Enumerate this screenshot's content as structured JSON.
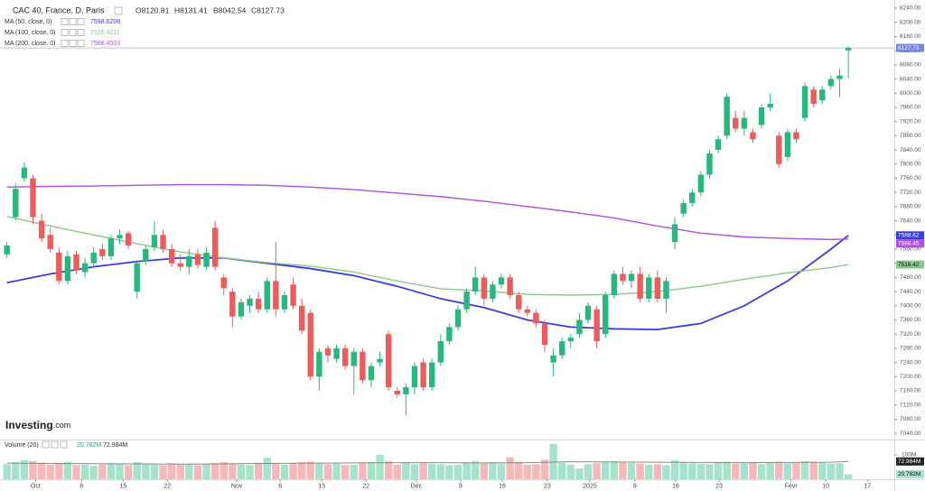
{
  "chart_data": {
    "type": "candlestick",
    "title": "CAC 40, France, D, Paris",
    "ohlc_header": [
      "O8120.81",
      "H8131.41",
      "B8042.54",
      "C8127.73"
    ],
    "last_label": "8127.73",
    "logo": "Investing",
    "logo_suffix": ".com",
    "grid": false,
    "up_color": "#26b87c",
    "down_color": "#ef5a5a",
    "xlim": [
      -0.8,
      102.3
    ],
    "xticks": [
      {
        "value": 3.3,
        "label": "Oct"
      },
      {
        "value": 8.6,
        "label": "8"
      },
      {
        "value": 13.4,
        "label": "15"
      },
      {
        "value": 18.5,
        "label": "22"
      },
      {
        "value": 26.5,
        "label": "Nov"
      },
      {
        "value": 31.5,
        "label": "6"
      },
      {
        "value": 36.3,
        "label": "15"
      },
      {
        "value": 41.4,
        "label": "22"
      },
      {
        "value": 47.2,
        "label": "Déc"
      },
      {
        "value": 52.3,
        "label": "9"
      },
      {
        "value": 57.1,
        "label": "16"
      },
      {
        "value": 62.3,
        "label": "23"
      },
      {
        "value": 67.2,
        "label": "2025"
      },
      {
        "value": 72.4,
        "label": "9"
      },
      {
        "value": 77.1,
        "label": "16"
      },
      {
        "value": 82.1,
        "label": "23"
      },
      {
        "value": 90.4,
        "label": "Févr"
      },
      {
        "value": 94.4,
        "label": "10"
      },
      {
        "value": 99.2,
        "label": "17"
      }
    ],
    "ylim": [
      7025,
      8263
    ],
    "yticks": [
      {
        "value": 7040,
        "label": "7040.00"
      },
      {
        "value": 7080,
        "label": "7080.00"
      },
      {
        "value": 7120,
        "label": "7120.00"
      },
      {
        "value": 7160,
        "label": "7160.00"
      },
      {
        "value": 7200,
        "label": "7200.00"
      },
      {
        "value": 7240,
        "label": "7240.00"
      },
      {
        "value": 7280,
        "label": "7280.00"
      },
      {
        "value": 7320,
        "label": "7320.00"
      },
      {
        "value": 7360,
        "label": "7360.00"
      },
      {
        "value": 7400,
        "label": "7400.00"
      },
      {
        "value": 7440,
        "label": "7440.00"
      },
      {
        "value": 7480,
        "label": "7480.00"
      },
      {
        "value": 7520,
        "label": "7520.00"
      },
      {
        "value": 7560,
        "label": "7560.00"
      },
      {
        "value": 7600,
        "label": "7600.00"
      },
      {
        "value": 7640,
        "label": "7640.00"
      },
      {
        "value": 7680,
        "label": "7680.00"
      },
      {
        "value": 7720,
        "label": "7720.00"
      },
      {
        "value": 7760,
        "label": "7760.00"
      },
      {
        "value": 7800,
        "label": "7800.00"
      },
      {
        "value": 7840,
        "label": "7840.00"
      },
      {
        "value": 7880,
        "label": "7880.00"
      },
      {
        "value": 7920,
        "label": "7920.00"
      },
      {
        "value": 7960,
        "label": "7960.00"
      },
      {
        "value": 8000,
        "label": "8000.00"
      },
      {
        "value": 8040,
        "label": "8040.00"
      },
      {
        "value": 8080,
        "label": "8080.00"
      },
      {
        "value": 8120,
        "label": "8120.00"
      },
      {
        "value": 8160,
        "label": "8160.00"
      },
      {
        "value": 8200,
        "label": "8200.00"
      },
      {
        "value": 8240,
        "label": "8240.00"
      }
    ],
    "ohlc": [
      [
        7545,
        7580,
        7535,
        7570
      ],
      [
        7650,
        7745,
        7640,
        7730
      ],
      [
        7760,
        7805,
        7750,
        7790
      ],
      [
        7760,
        7770,
        7630,
        7650
      ],
      [
        7640,
        7660,
        7580,
        7590
      ],
      [
        7600,
        7620,
        7550,
        7560
      ],
      [
        7550,
        7565,
        7460,
        7470
      ],
      [
        7470,
        7555,
        7460,
        7540
      ],
      [
        7545,
        7555,
        7490,
        7500
      ],
      [
        7495,
        7535,
        7480,
        7520
      ],
      [
        7520,
        7565,
        7510,
        7550
      ],
      [
        7560,
        7575,
        7530,
        7540
      ],
      [
        7540,
        7600,
        7530,
        7590
      ],
      [
        7590,
        7615,
        7575,
        7600
      ],
      [
        7605,
        7610,
        7560,
        7570
      ],
      [
        7440,
        7530,
        7420,
        7520
      ],
      [
        7525,
        7570,
        7515,
        7560
      ],
      [
        7565,
        7640,
        7555,
        7600
      ],
      [
        7600,
        7615,
        7550,
        7560
      ],
      [
        7560,
        7575,
        7510,
        7520
      ],
      [
        7520,
        7545,
        7500,
        7510
      ],
      [
        7510,
        7560,
        7490,
        7540
      ],
      [
        7545,
        7560,
        7505,
        7515
      ],
      [
        7510,
        7565,
        7500,
        7550
      ],
      [
        7620,
        7640,
        7500,
        7510
      ],
      [
        7480,
        7490,
        7430,
        7450
      ],
      [
        7440,
        7450,
        7340,
        7370
      ],
      [
        7370,
        7420,
        7360,
        7410
      ],
      [
        7400,
        7430,
        7380,
        7420
      ],
      [
        7420,
        7440,
        7380,
        7390
      ],
      [
        7390,
        7480,
        7380,
        7470
      ],
      [
        7470,
        7580,
        7370,
        7390
      ],
      [
        7390,
        7440,
        7380,
        7430
      ],
      [
        7460,
        7480,
        7390,
        7400
      ],
      [
        7400,
        7420,
        7320,
        7330
      ],
      [
        7380,
        7390,
        7190,
        7200
      ],
      [
        7200,
        7280,
        7160,
        7270
      ],
      [
        7280,
        7290,
        7240,
        7260
      ],
      [
        7250,
        7290,
        7240,
        7280
      ],
      [
        7280,
        7290,
        7220,
        7230
      ],
      [
        7230,
        7280,
        7150,
        7270
      ],
      [
        7270,
        7280,
        7180,
        7190
      ],
      [
        7190,
        7240,
        7170,
        7230
      ],
      [
        7240,
        7270,
        7230,
        7250
      ],
      [
        7320,
        7330,
        7160,
        7170
      ],
      [
        7160,
        7170,
        7140,
        7150
      ],
      [
        7150,
        7180,
        7090,
        7170
      ],
      [
        7170,
        7240,
        7150,
        7230
      ],
      [
        7240,
        7250,
        7160,
        7170
      ],
      [
        7170,
        7250,
        7160,
        7240
      ],
      [
        7240,
        7320,
        7230,
        7300
      ],
      [
        7300,
        7350,
        7290,
        7340
      ],
      [
        7340,
        7400,
        7330,
        7390
      ],
      [
        7390,
        7450,
        7380,
        7440
      ],
      [
        7440,
        7510,
        7430,
        7480
      ],
      [
        7480,
        7490,
        7400,
        7420
      ],
      [
        7420,
        7470,
        7410,
        7460
      ],
      [
        7460,
        7490,
        7450,
        7480
      ],
      [
        7480,
        7490,
        7420,
        7430
      ],
      [
        7430,
        7440,
        7380,
        7390
      ],
      [
        7390,
        7400,
        7370,
        7380
      ],
      [
        7380,
        7390,
        7340,
        7350
      ],
      [
        7350,
        7360,
        7270,
        7290
      ],
      [
        7240,
        7280,
        7200,
        7260
      ],
      [
        7260,
        7310,
        7250,
        7300
      ],
      [
        7300,
        7320,
        7280,
        7310
      ],
      [
        7320,
        7380,
        7310,
        7360
      ],
      [
        7360,
        7410,
        7350,
        7400
      ],
      [
        7390,
        7400,
        7280,
        7300
      ],
      [
        7320,
        7440,
        7310,
        7430
      ],
      [
        7430,
        7500,
        7420,
        7490
      ],
      [
        7490,
        7510,
        7460,
        7470
      ],
      [
        7470,
        7500,
        7450,
        7490
      ],
      [
        7490,
        7510,
        7410,
        7420
      ],
      [
        7420,
        7490,
        7410,
        7480
      ],
      [
        7480,
        7500,
        7410,
        7420
      ],
      [
        7420,
        7480,
        7380,
        7470
      ],
      [
        7580,
        7650,
        7560,
        7630
      ],
      [
        7660,
        7700,
        7650,
        7690
      ],
      [
        7690,
        7730,
        7680,
        7720
      ],
      [
        7720,
        7780,
        7710,
        7770
      ],
      [
        7770,
        7840,
        7760,
        7830
      ],
      [
        7840,
        7880,
        7830,
        7870
      ],
      [
        7880,
        8000,
        7870,
        7990
      ],
      [
        7930,
        7950,
        7890,
        7900
      ],
      [
        7900,
        7950,
        7880,
        7930
      ],
      [
        7890,
        7900,
        7860,
        7870
      ],
      [
        7910,
        7970,
        7900,
        7960
      ],
      [
        7960,
        8000,
        7950,
        7970
      ],
      [
        7880,
        7890,
        7790,
        7800
      ],
      [
        7820,
        7900,
        7810,
        7890
      ],
      [
        7890,
        7900,
        7860,
        7870
      ],
      [
        7930,
        8030,
        7920,
        8020
      ],
      [
        8010,
        8020,
        7960,
        7970
      ],
      [
        7980,
        8020,
        7970,
        8010
      ],
      [
        8020,
        8050,
        8010,
        8040
      ],
      [
        8040,
        8070,
        7990,
        8050
      ],
      [
        8120.81,
        8131.41,
        8042.54,
        8127.73
      ]
    ],
    "series": [
      {
        "name": "MA (50, close, 0)",
        "color": "#3c3cdc",
        "x": [
          0,
          5,
          10,
          15,
          20,
          25,
          30,
          35,
          40,
          45,
          50,
          55,
          60,
          65,
          70,
          75,
          80,
          85,
          90,
          95,
          97
        ],
        "values": [
          7465,
          7490,
          7510,
          7525,
          7535,
          7535,
          7520,
          7505,
          7485,
          7455,
          7420,
          7395,
          7360,
          7340,
          7335,
          7333,
          7350,
          7400,
          7470,
          7560,
          7598.6208
        ],
        "legend_value": "7598.6208",
        "axis_label": "7598.62"
      },
      {
        "name": "MA (100, close, 0)",
        "color": "#8cc88c",
        "x": [
          0,
          5,
          10,
          15,
          20,
          25,
          30,
          35,
          40,
          45,
          50,
          55,
          60,
          65,
          70,
          75,
          80,
          85,
          90,
          95,
          97
        ],
        "values": [
          7652,
          7625,
          7600,
          7575,
          7552,
          7535,
          7522,
          7512,
          7495,
          7470,
          7448,
          7442,
          7432,
          7430,
          7432,
          7440,
          7455,
          7475,
          7493,
          7508,
          7516.4211
        ],
        "legend_value": "7516.4211",
        "axis_label": "7516.42"
      },
      {
        "name": "MA (200, close, 0)",
        "color": "#b04fe6",
        "x": [
          0,
          5,
          10,
          15,
          20,
          25,
          30,
          35,
          40,
          45,
          50,
          55,
          60,
          65,
          70,
          75,
          80,
          85,
          90,
          95,
          97
        ],
        "values": [
          7735,
          7737,
          7738,
          7740,
          7742,
          7742,
          7740,
          7735,
          7728,
          7718,
          7708,
          7695,
          7680,
          7665,
          7648,
          7625,
          7605,
          7594,
          7590,
          7587,
          7588.4503
        ],
        "legend_value": "7588.4503",
        "axis_label": "7588.45"
      }
    ],
    "volume": {
      "name": "Volume (20)",
      "up_color": "#a6e3cd",
      "down_color": "#f6b8b8",
      "values": [
        62,
        70,
        78,
        75,
        68,
        60,
        66,
        72,
        58,
        60,
        55,
        60,
        64,
        62,
        58,
        70,
        62,
        60,
        58,
        66,
        60,
        62,
        58,
        64,
        66,
        70,
        62,
        60,
        58,
        66,
        88,
        64,
        60,
        66,
        70,
        72,
        66,
        62,
        64,
        58,
        60,
        66,
        72,
        100,
        74,
        60,
        70,
        62,
        66,
        64,
        62,
        58,
        60,
        68,
        74,
        66,
        70,
        64,
        90,
        72,
        60,
        62,
        80,
        145,
        68,
        60,
        44,
        62,
        66,
        70,
        74,
        72,
        66,
        64,
        60,
        62,
        58,
        78,
        70,
        66,
        64,
        62,
        68,
        72,
        64,
        66,
        70,
        62,
        68,
        72,
        66,
        70,
        74,
        72,
        68,
        64,
        66,
        20.782
      ],
      "legend_value": "20.782M",
      "axis_label": "20.782M",
      "ma_color": "#8a8a8a",
      "ma_x": [
        0,
        5,
        10,
        15,
        20,
        25,
        30,
        35,
        40,
        45,
        50,
        55,
        60,
        65,
        70,
        75,
        80,
        85,
        90,
        95,
        97
      ],
      "ma_values": [
        66,
        65,
        64,
        63,
        62,
        63,
        65,
        66,
        67,
        68,
        68,
        67,
        68,
        72,
        71,
        70,
        69,
        68,
        69,
        70,
        72.984
      ],
      "ma_legend_value": "72.984M",
      "ma_axis_label": "72.984M",
      "ylim": [
        0,
        150
      ],
      "yticks": [
        {
          "value": 100,
          "label": "100M"
        }
      ]
    }
  }
}
